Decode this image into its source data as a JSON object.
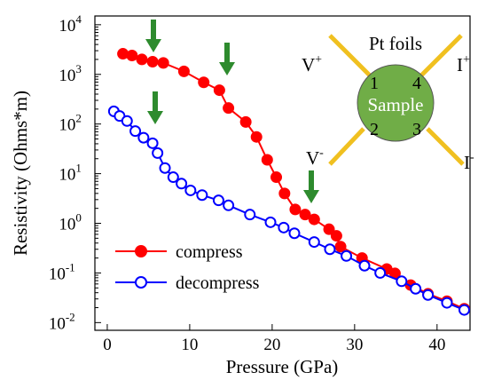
{
  "chart_data": {
    "type": "line",
    "x_label": "Pressure (GPa)",
    "y_label": "Resistivity (Ohms*m)",
    "log_y": true,
    "xlim": [
      -1.5,
      44
    ],
    "ylim": [
      0.007,
      15000
    ],
    "xticks": [
      0,
      10,
      20,
      30,
      40
    ],
    "yticks": [
      {
        "value": 0.01,
        "label": "10",
        "exponent": "-2"
      },
      {
        "value": 0.1,
        "label": "10",
        "exponent": "-1"
      },
      {
        "value": 1,
        "label": "10",
        "exponent": "0"
      },
      {
        "value": 10,
        "label": "10",
        "exponent": "1"
      },
      {
        "value": 100,
        "label": "10",
        "exponent": "2"
      },
      {
        "value": 1000,
        "label": "10",
        "exponent": "3"
      },
      {
        "value": 10000,
        "label": "10",
        "exponent": "4"
      }
    ],
    "legend": "lower left",
    "series": [
      {
        "name": "compress",
        "color": "#ff0000",
        "marker": "filled",
        "x": [
          1.9,
          3.0,
          4.2,
          5.5,
          6.8,
          9.3,
          11.7,
          13.6,
          14.7,
          16.8,
          18.1,
          19.4,
          20.5,
          21.5,
          22.8,
          24.0,
          25.1,
          26.9,
          27.8,
          28.3,
          30.9,
          33.9,
          34.9,
          36.8,
          38.9,
          41.2,
          43.3
        ],
        "values": [
          2600,
          2400,
          2000,
          1800,
          1700,
          1150,
          690,
          480,
          210,
          110,
          55,
          19,
          8.5,
          4,
          1.9,
          1.5,
          1.2,
          0.76,
          0.56,
          0.34,
          0.2,
          0.12,
          0.098,
          0.057,
          0.038,
          0.027,
          0.019
        ]
      },
      {
        "name": "decompress",
        "color": "#0000ff",
        "marker": "open",
        "x": [
          0.8,
          1.5,
          2.4,
          3.4,
          4.4,
          5.5,
          6.1,
          7.0,
          8.0,
          9.0,
          10.1,
          11.5,
          13.5,
          14.7,
          17.3,
          19.8,
          21.4,
          22.7,
          25.1,
          27.0,
          29.0,
          31.2,
          33.1,
          35.7,
          37.4,
          38.9,
          41.2,
          43.3
        ],
        "values": [
          180,
          145,
          115,
          72,
          53,
          41,
          26,
          13,
          8.5,
          6.3,
          4.6,
          3.7,
          2.9,
          2.3,
          1.5,
          1.05,
          0.82,
          0.63,
          0.42,
          0.3,
          0.22,
          0.14,
          0.1,
          0.068,
          0.048,
          0.036,
          0.025,
          0.018
        ]
      }
    ],
    "inset": {
      "title": "Pt foils",
      "sample": "Sample",
      "pins": [
        "1",
        "4",
        "2",
        "3"
      ],
      "leads": [
        {
          "text": "V",
          "sup": "+"
        },
        {
          "text": "I",
          "sup": "+"
        },
        {
          "text": "V",
          "sup": "-"
        },
        {
          "text": "I",
          "sup": "-"
        }
      ]
    }
  }
}
